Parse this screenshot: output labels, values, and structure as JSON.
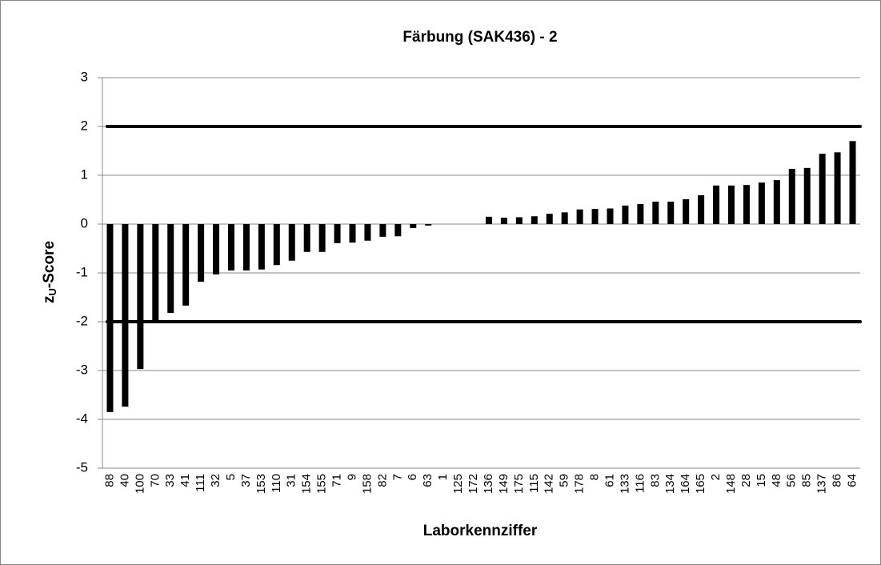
{
  "chart_data": {
    "type": "bar",
    "title": "Färbung (SAK436) - 2",
    "xlabel": "Laborkennziffer",
    "ylabel": {
      "main": "z",
      "sub": "U",
      "rest": "-Score"
    },
    "categories": [
      "88",
      "40",
      "100",
      "70",
      "33",
      "41",
      "111",
      "32",
      "5",
      "37",
      "153",
      "110",
      "31",
      "154",
      "155",
      "71",
      "9",
      "158",
      "82",
      "7",
      "6",
      "63",
      "1",
      "125",
      "172",
      "136",
      "149",
      "175",
      "115",
      "142",
      "59",
      "178",
      "8",
      "61",
      "133",
      "116",
      "83",
      "134",
      "164",
      "165",
      "2",
      "148",
      "28",
      "15",
      "48",
      "56",
      "85",
      "137",
      "86",
      "64"
    ],
    "values": [
      -3.85,
      -3.74,
      -2.97,
      -1.98,
      -1.82,
      -1.67,
      -1.18,
      -1.03,
      -0.95,
      -0.95,
      -0.93,
      -0.84,
      -0.75,
      -0.57,
      -0.57,
      -0.39,
      -0.38,
      -0.34,
      -0.26,
      -0.25,
      -0.08,
      -0.03,
      0,
      0,
      0,
      0.15,
      0.13,
      0.14,
      0.16,
      0.21,
      0.24,
      0.3,
      0.31,
      0.32,
      0.38,
      0.41,
      0.46,
      0.46,
      0.51,
      0.59,
      0.79,
      0.79,
      0.8,
      0.85,
      0.9,
      1.13,
      1.15,
      1.44,
      1.47,
      1.7
    ],
    "color": "#000000",
    "limit_lines": [
      2,
      -2
    ],
    "ylim": [
      -5,
      3
    ],
    "yticks": [
      -5,
      -4,
      -3,
      -2,
      -1,
      0,
      1,
      2,
      3
    ],
    "grid": true
  }
}
